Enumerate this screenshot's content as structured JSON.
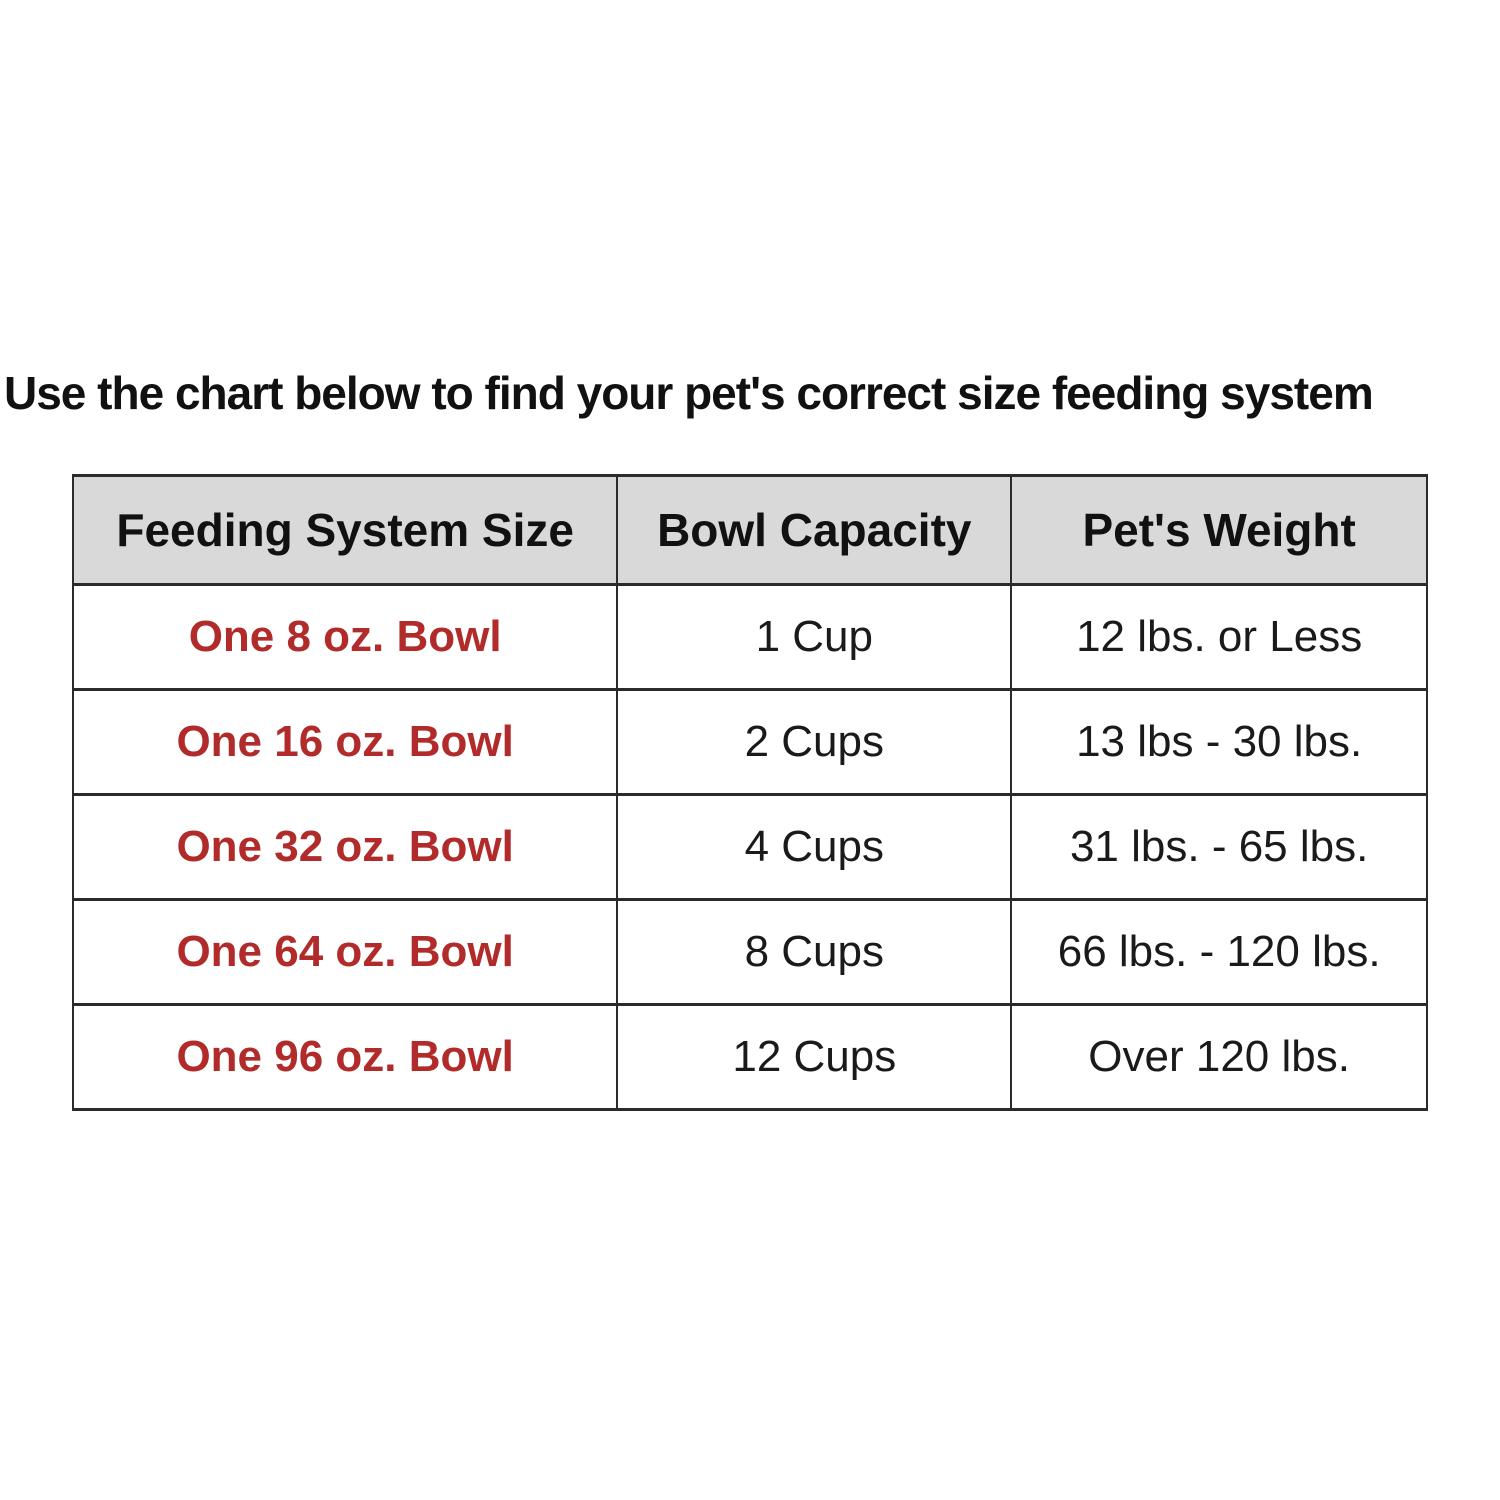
{
  "title": "Use the chart below to find your pet's correct size feeding system",
  "colors": {
    "accent_red": "#b22b2b",
    "header_bg": "#d9d9d9",
    "border": "#2b2b2b",
    "text": "#1a1a1a",
    "background": "#ffffff"
  },
  "chart_data": {
    "type": "table",
    "title": "Use the chart below to find your pet's correct size feeding system",
    "columns": [
      "Feeding System Size",
      "Bowl Capacity",
      "Pet's Weight"
    ],
    "rows": [
      [
        "One 8 oz. Bowl",
        "1 Cup",
        "12 lbs. or Less"
      ],
      [
        "One 16 oz. Bowl",
        "2 Cups",
        "13 lbs - 30 lbs."
      ],
      [
        "One 32 oz. Bowl",
        "4 Cups",
        "31 lbs. - 65 lbs."
      ],
      [
        "One 64 oz. Bowl",
        "8 Cups",
        "66 lbs. - 120 lbs."
      ],
      [
        "One 96 oz. Bowl",
        "12 Cups",
        "Over 120 lbs."
      ]
    ]
  }
}
